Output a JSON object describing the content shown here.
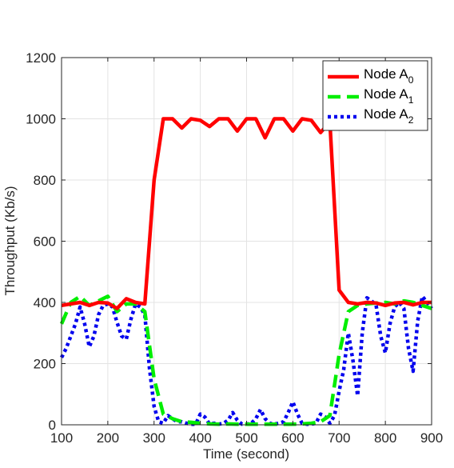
{
  "chart_data": {
    "type": "line",
    "xlabel": "Time (second)",
    "ylabel": "Throughput (Kb/s)",
    "xlim": [
      100,
      900
    ],
    "ylim": [
      0,
      1200
    ],
    "xticks": [
      100,
      200,
      300,
      400,
      500,
      600,
      700,
      800,
      900
    ],
    "yticks": [
      0,
      200,
      400,
      600,
      800,
      1000,
      1200
    ],
    "grid": true,
    "legend_position": "top-right",
    "series": [
      {
        "name": "Node A0",
        "label_main": "Node A",
        "label_sub": "0",
        "color": "#ff0000",
        "style": "solid",
        "x": [
          100,
          120,
          140,
          160,
          180,
          200,
          220,
          240,
          260,
          280,
          300,
          320,
          340,
          360,
          380,
          400,
          420,
          440,
          460,
          480,
          500,
          520,
          540,
          560,
          580,
          600,
          620,
          640,
          660,
          680,
          700,
          720,
          740,
          760,
          780,
          800,
          820,
          840,
          860,
          880,
          900
        ],
        "values": [
          390,
          395,
          400,
          390,
          400,
          398,
          380,
          412,
          400,
          395,
          800,
          1000,
          1000,
          970,
          1000,
          995,
          975,
          1000,
          1000,
          960,
          1000,
          1000,
          938,
          1000,
          1000,
          960,
          1000,
          995,
          955,
          990,
          440,
          400,
          395,
          400,
          398,
          390,
          398,
          400,
          392,
          400,
          400
        ]
      },
      {
        "name": "Node A1",
        "label_main": "Node A",
        "label_sub": "1",
        "color": "#00ee00",
        "style": "dashed",
        "x": [
          100,
          120,
          140,
          160,
          180,
          200,
          220,
          240,
          260,
          280,
          300,
          320,
          340,
          360,
          380,
          400,
          420,
          440,
          460,
          480,
          500,
          520,
          540,
          560,
          580,
          600,
          620,
          640,
          660,
          680,
          700,
          720,
          740,
          760,
          780,
          800,
          820,
          840,
          860,
          880,
          900
        ],
        "values": [
          330,
          400,
          420,
          390,
          405,
          420,
          370,
          395,
          395,
          370,
          150,
          35,
          20,
          10,
          8,
          5,
          3,
          2,
          3,
          2,
          2,
          2,
          2,
          2,
          2,
          2,
          3,
          5,
          10,
          30,
          230,
          370,
          390,
          395,
          398,
          400,
          395,
          405,
          400,
          390,
          380
        ]
      },
      {
        "name": "Node A2",
        "label_main": "Node A",
        "label_sub": "2",
        "color": "#0000ee",
        "style": "dotted",
        "x": [
          100,
          110,
          120,
          130,
          140,
          150,
          160,
          170,
          180,
          190,
          200,
          210,
          220,
          230,
          240,
          250,
          260,
          270,
          280,
          290,
          300,
          310,
          320,
          330,
          340,
          350,
          360,
          370,
          380,
          390,
          400,
          410,
          420,
          430,
          440,
          450,
          460,
          470,
          480,
          490,
          500,
          510,
          520,
          530,
          540,
          550,
          560,
          570,
          580,
          590,
          600,
          610,
          620,
          630,
          640,
          650,
          660,
          670,
          680,
          690,
          700,
          710,
          720,
          730,
          740,
          750,
          760,
          770,
          780,
          790,
          800,
          810,
          820,
          830,
          840,
          850,
          860,
          870,
          880,
          890,
          900
        ],
        "values": [
          220,
          250,
          290,
          330,
          385,
          330,
          255,
          290,
          360,
          390,
          395,
          385,
          335,
          290,
          280,
          345,
          395,
          385,
          360,
          185,
          60,
          10,
          5,
          30,
          20,
          10,
          10,
          5,
          2,
          2,
          35,
          25,
          2,
          5,
          2,
          5,
          15,
          40,
          15,
          2,
          2,
          5,
          20,
          50,
          20,
          5,
          2,
          5,
          10,
          40,
          75,
          35,
          5,
          2,
          2,
          5,
          35,
          25,
          5,
          30,
          110,
          180,
          300,
          210,
          95,
          300,
          415,
          405,
          390,
          290,
          235,
          330,
          385,
          400,
          380,
          250,
          175,
          340,
          420,
          400,
          380
        ]
      }
    ]
  }
}
